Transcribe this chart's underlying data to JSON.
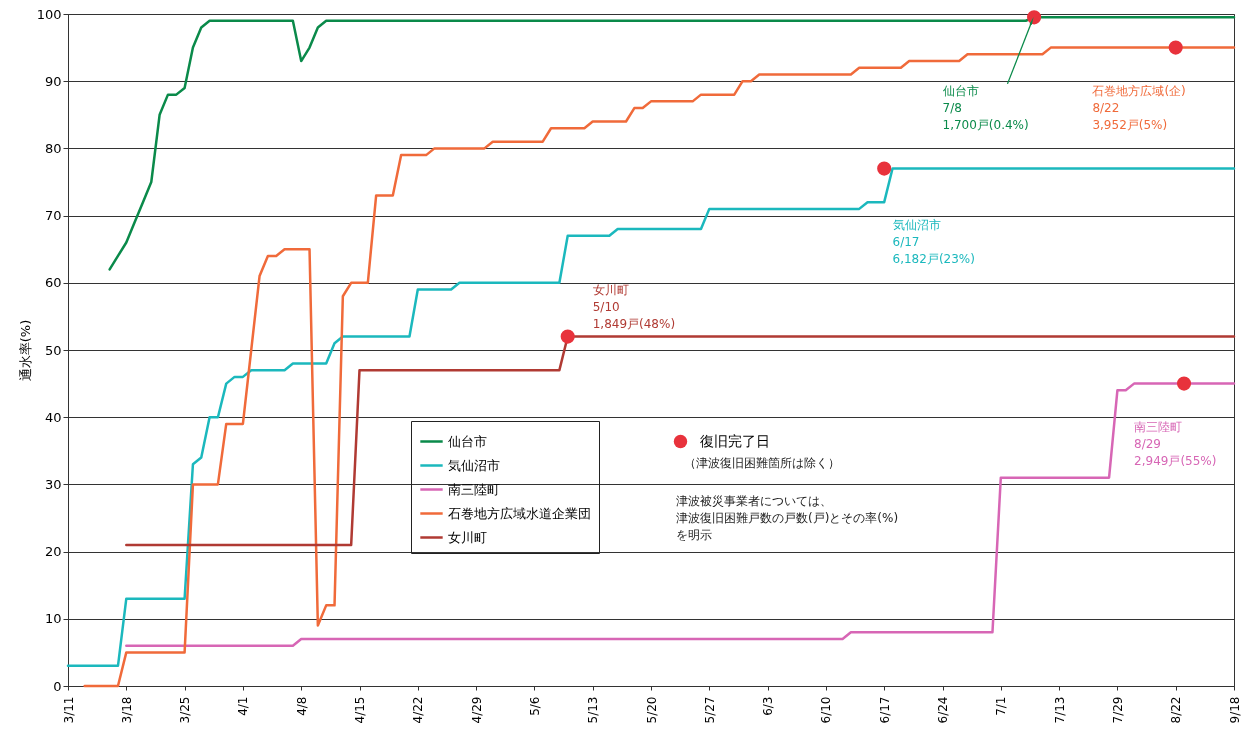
{
  "chart_data": {
    "type": "line",
    "ylabel": "通水率(%)",
    "categories": [
      "3/11",
      null,
      null,
      null,
      null,
      null,
      null,
      "3/18",
      null,
      null,
      null,
      null,
      null,
      null,
      "3/25",
      null,
      null,
      null,
      null,
      null,
      null,
      "4/1",
      null,
      null,
      null,
      null,
      null,
      null,
      "4/8",
      null,
      null,
      null,
      null,
      null,
      null,
      "4/15",
      null,
      null,
      null,
      null,
      null,
      null,
      "4/22",
      null,
      null,
      null,
      null,
      null,
      null,
      "4/29",
      null,
      null,
      null,
      null,
      null,
      null,
      "5/6",
      null,
      null,
      null,
      null,
      null,
      null,
      "5/13",
      null,
      null,
      null,
      null,
      null,
      null,
      "5/20",
      null,
      null,
      null,
      null,
      null,
      null,
      "5/27",
      null,
      null,
      null,
      null,
      null,
      null,
      "6/3",
      null,
      null,
      null,
      null,
      null,
      null,
      "6/10",
      null,
      null,
      null,
      null,
      null,
      null,
      "6/17",
      null,
      null,
      null,
      null,
      null,
      null,
      "6/24",
      null,
      null,
      null,
      null,
      null,
      null,
      "7/1",
      null,
      null,
      null,
      null,
      null,
      null,
      "7/13",
      null,
      null,
      null,
      null,
      null,
      null,
      "7/29",
      null,
      null,
      null,
      null,
      null,
      null,
      "8/22",
      null,
      null,
      null,
      null,
      null,
      null,
      "9/18"
    ],
    "series": [
      {
        "name": "仙台市",
        "color": "#0a8a4a",
        "values": [
          null,
          null,
          null,
          null,
          null,
          62,
          64,
          66,
          69,
          72,
          75,
          85,
          88,
          88,
          89,
          95,
          98,
          99,
          99,
          99,
          99,
          99,
          99,
          99,
          99,
          99,
          99,
          99,
          93,
          95,
          98,
          99,
          99,
          99,
          99,
          99,
          99,
          99,
          99,
          99,
          99,
          99,
          99,
          99,
          99,
          99,
          99,
          99,
          99,
          99,
          99,
          99,
          99,
          99,
          99,
          99,
          99,
          99,
          99,
          99,
          99,
          99,
          99,
          99,
          99,
          99,
          99,
          99,
          99,
          99,
          99,
          99,
          99,
          99,
          99,
          99,
          99,
          99,
          99,
          99,
          99,
          99,
          99,
          99,
          99,
          99,
          99,
          99,
          99,
          99,
          99,
          99,
          99,
          99,
          99,
          99,
          99,
          99,
          99,
          99,
          99,
          99,
          99,
          99,
          99,
          99,
          99,
          99,
          99,
          99,
          99,
          99,
          99,
          99,
          99,
          99,
          99.5,
          99.5,
          99.5,
          99.5,
          99.5,
          99.5,
          99.5,
          99.5,
          99.5,
          99.5,
          99.5,
          99.5,
          99.5,
          99.5,
          99.5,
          99.5,
          99.5,
          99.5,
          99.5,
          99.5,
          99.5,
          99.5,
          99.5,
          99.5,
          99.5
        ]
      },
      {
        "name": "気仙沼市",
        "color": "#1bb8bd",
        "values": [
          3,
          3,
          3,
          3,
          3,
          3,
          3,
          13,
          13,
          13,
          13,
          13,
          13,
          13,
          13,
          33,
          34,
          40,
          40,
          45,
          46,
          46,
          47,
          47,
          47,
          47,
          47,
          48,
          48,
          48,
          48,
          48,
          51,
          52,
          52,
          52,
          52,
          52,
          52,
          52,
          52,
          52,
          59,
          59,
          59,
          59,
          59,
          60,
          60,
          60,
          60,
          60,
          60,
          60,
          60,
          60,
          60,
          60,
          60,
          60,
          67,
          67,
          67,
          67,
          67,
          67,
          68,
          68,
          68,
          68,
          68,
          68,
          68,
          68,
          68,
          68,
          68,
          71,
          71,
          71,
          71,
          71,
          71,
          71,
          71,
          71,
          71,
          71,
          71,
          71,
          71,
          71,
          71,
          71,
          71,
          71,
          72,
          72,
          72,
          77,
          77,
          77,
          77,
          77,
          77,
          77,
          77,
          77,
          77,
          77,
          77,
          77,
          77,
          77,
          77,
          77,
          77,
          77,
          77,
          77,
          77,
          77,
          77,
          77,
          77,
          77,
          77,
          77,
          77,
          77,
          77,
          77,
          77,
          77,
          77,
          77,
          77,
          77,
          77,
          77,
          77
        ]
      },
      {
        "name": "南三陸町",
        "color": "#d766b5",
        "values": [
          null,
          null,
          null,
          null,
          null,
          null,
          null,
          6,
          6,
          6,
          6,
          6,
          6,
          6,
          6,
          6,
          6,
          6,
          6,
          6,
          6,
          6,
          6,
          6,
          6,
          6,
          6,
          6,
          7,
          7,
          7,
          7,
          7,
          7,
          7,
          7,
          7,
          7,
          7,
          7,
          7,
          7,
          7,
          7,
          7,
          7,
          7,
          7,
          7,
          7,
          7,
          7,
          7,
          7,
          7,
          7,
          7,
          7,
          7,
          7,
          7,
          7,
          7,
          7,
          7,
          7,
          7,
          7,
          7,
          7,
          7,
          7,
          7,
          7,
          7,
          7,
          7,
          7,
          7,
          7,
          7,
          7,
          7,
          7,
          7,
          7,
          7,
          7,
          7,
          7,
          7,
          7,
          7,
          7,
          8,
          8,
          8,
          8,
          8,
          8,
          8,
          8,
          8,
          8,
          8,
          8,
          8,
          8,
          8,
          8,
          8,
          8,
          31,
          31,
          31,
          31,
          31,
          31,
          31,
          31,
          31,
          31,
          31,
          31,
          31,
          31,
          44,
          44,
          45,
          45,
          45,
          45,
          45,
          45,
          45,
          45,
          45,
          45,
          45,
          45,
          45
        ]
      },
      {
        "name": "石巻地方広域水道企業団",
        "color": "#f06a3a",
        "values": [
          null,
          null,
          0,
          0,
          0,
          0,
          0,
          5,
          5,
          5,
          5,
          5,
          5,
          5,
          5,
          30,
          30,
          30,
          30,
          39,
          39,
          39,
          50,
          61,
          64,
          64,
          65,
          65,
          65,
          65,
          9,
          12,
          12,
          58,
          60,
          60,
          60,
          73,
          73,
          73,
          79,
          79,
          79,
          79,
          80,
          80,
          80,
          80,
          80,
          80,
          80,
          81,
          81,
          81,
          81,
          81,
          81,
          81,
          83,
          83,
          83,
          83,
          83,
          84,
          84,
          84,
          84,
          84,
          86,
          86,
          87,
          87,
          87,
          87,
          87,
          87,
          88,
          88,
          88,
          88,
          88,
          90,
          90,
          91,
          91,
          91,
          91,
          91,
          91,
          91,
          91,
          91,
          91,
          91,
          91,
          92,
          92,
          92,
          92,
          92,
          92,
          93,
          93,
          93,
          93,
          93,
          93,
          93,
          94,
          94,
          94,
          94,
          94,
          94,
          94,
          94,
          94,
          94,
          95,
          95,
          95,
          95,
          95,
          95,
          95,
          95,
          95,
          95,
          95,
          95,
          95,
          95,
          95,
          95,
          95,
          95,
          95,
          95,
          95,
          95,
          95
        ]
      },
      {
        "name": "女川町",
        "color": "#b03a33",
        "values": [
          null,
          null,
          null,
          null,
          null,
          null,
          null,
          21,
          21,
          21,
          21,
          21,
          21,
          21,
          21,
          21,
          21,
          21,
          21,
          21,
          21,
          21,
          21,
          21,
          21,
          21,
          21,
          21,
          21,
          21,
          21,
          21,
          21,
          21,
          21,
          47,
          47,
          47,
          47,
          47,
          47,
          47,
          47,
          47,
          47,
          47,
          47,
          47,
          47,
          47,
          47,
          47,
          47,
          47,
          47,
          47,
          47,
          47,
          47,
          47,
          52,
          52,
          52,
          52,
          52,
          52,
          52,
          52,
          52,
          52,
          52,
          52,
          52,
          52,
          52,
          52,
          52,
          52,
          52,
          52,
          52,
          52,
          52,
          52,
          52,
          52,
          52,
          52,
          52,
          52,
          52,
          52,
          52,
          52,
          52,
          52,
          52,
          52,
          52,
          52,
          52,
          52,
          52,
          52,
          52,
          52,
          52,
          52,
          52,
          52,
          52,
          52,
          52,
          52,
          52,
          52,
          52,
          52,
          52,
          52,
          52,
          52,
          52,
          52,
          52,
          52,
          52,
          52,
          52,
          52,
          52,
          52,
          52,
          52,
          52,
          52,
          52,
          52,
          52,
          52,
          52
        ]
      },
      {
        "name": "復旧完了日",
        "type": "scatter",
        "color": "#e8323c",
        "values": [
          null,
          null,
          null,
          null,
          null,
          null,
          null,
          null,
          null,
          null,
          null,
          null,
          null,
          null,
          null,
          null,
          null,
          null,
          null,
          null,
          null,
          null,
          null,
          null,
          null,
          null,
          null,
          null,
          null,
          null,
          null,
          null,
          null,
          null,
          null,
          null,
          null,
          null,
          null,
          null,
          null,
          null,
          null,
          null,
          null,
          null,
          null,
          null,
          null,
          null,
          null,
          null,
          null,
          null,
          null,
          null,
          null,
          null,
          null,
          null,
          52,
          null,
          null,
          null,
          null,
          null,
          null,
          null,
          null,
          null,
          null,
          null,
          null,
          null,
          null,
          null,
          null,
          null,
          null,
          null,
          null,
          null,
          null,
          null,
          null,
          null,
          null,
          null,
          null,
          null,
          null,
          null,
          null,
          null,
          null,
          null,
          null,
          null,
          77,
          null,
          null,
          null,
          null,
          null,
          null,
          null,
          null,
          null,
          null,
          null,
          null,
          null,
          null,
          null,
          null,
          null,
          99.5,
          null,
          null,
          null,
          null,
          null,
          null,
          null,
          null,
          null,
          null,
          null,
          null,
          null,
          null,
          null,
          null,
          95,
          45,
          null,
          null,
          null,
          null,
          null,
          null
        ]
      }
    ],
    "ylim": [
      0,
      100
    ],
    "yticks": [
      0,
      10,
      20,
      30,
      40,
      50,
      60,
      70,
      80,
      90,
      100
    ],
    "grid": "y",
    "legend": "bottom",
    "annotations": [
      "仙台市\n7/8\n1,700戸(0.4%)",
      "石巻地方広域(企)\n8/22\n3,952戸(5%)",
      "気仙沼市\n6/17\n6,182戸(23%)",
      "女川町\n5/10\n1,849戸(48%)",
      "南三陸町\n8/29\n2,949戸(55%)",
      "（津波復旧困難箇所は除く）",
      "津波被災事業者については、",
      "津波復旧困難戸数の戸数(戸)とその率(%)",
      "を明示"
    ]
  }
}
